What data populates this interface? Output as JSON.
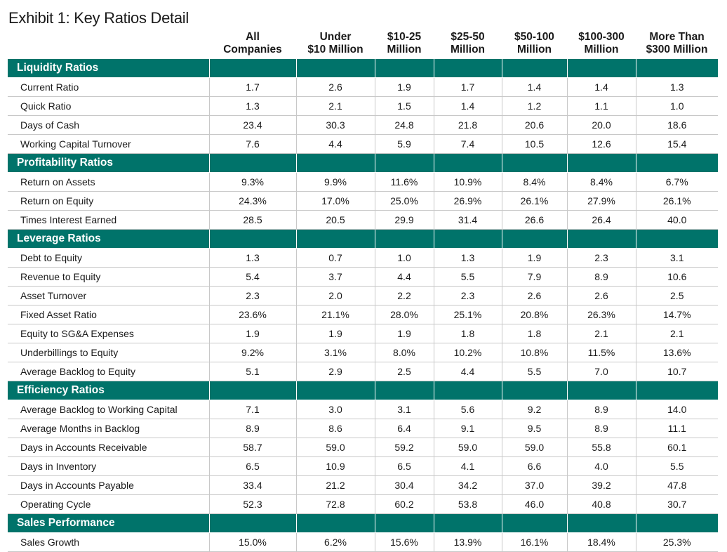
{
  "title": "Exhibit 1: Key Ratios Detail",
  "columns": [
    [
      "All",
      "Companies"
    ],
    [
      "Under",
      "$10 Million"
    ],
    [
      "$10-25",
      "Million"
    ],
    [
      "$25-50",
      "Million"
    ],
    [
      "$50-100",
      "Million"
    ],
    [
      "$100-300",
      "Million"
    ],
    [
      "More Than",
      "$300 Million"
    ]
  ],
  "colors": {
    "section_header_bg": "#00736a",
    "section_header_text": "#ffffff",
    "grid": "#c8c8c8"
  },
  "sections": [
    {
      "name": "Liquidity Ratios",
      "rows": [
        {
          "label": "Current Ratio",
          "values": [
            "1.7",
            "2.6",
            "1.9",
            "1.7",
            "1.4",
            "1.4",
            "1.3"
          ]
        },
        {
          "label": "Quick Ratio",
          "values": [
            "1.3",
            "2.1",
            "1.5",
            "1.4",
            "1.2",
            "1.1",
            "1.0"
          ]
        },
        {
          "label": "Days of Cash",
          "values": [
            "23.4",
            "30.3",
            "24.8",
            "21.8",
            "20.6",
            "20.0",
            "18.6"
          ]
        },
        {
          "label": "Working Capital Turnover",
          "values": [
            "7.6",
            "4.4",
            "5.9",
            "7.4",
            "10.5",
            "12.6",
            "15.4"
          ]
        }
      ]
    },
    {
      "name": "Profitability Ratios",
      "rows": [
        {
          "label": "Return on Assets",
          "values": [
            "9.3%",
            "9.9%",
            "11.6%",
            "10.9%",
            "8.4%",
            "8.4%",
            "6.7%"
          ]
        },
        {
          "label": "Return on Equity",
          "values": [
            "24.3%",
            "17.0%",
            "25.0%",
            "26.9%",
            "26.1%",
            "27.9%",
            "26.1%"
          ]
        },
        {
          "label": "Times Interest Earned",
          "values": [
            "28.5",
            "20.5",
            "29.9",
            "31.4",
            "26.6",
            "26.4",
            "40.0"
          ]
        }
      ]
    },
    {
      "name": "Leverage Ratios",
      "rows": [
        {
          "label": "Debt to Equity",
          "values": [
            "1.3",
            "0.7",
            "1.0",
            "1.3",
            "1.9",
            "2.3",
            "3.1"
          ]
        },
        {
          "label": "Revenue to Equity",
          "values": [
            "5.4",
            "3.7",
            "4.4",
            "5.5",
            "7.9",
            "8.9",
            "10.6"
          ]
        },
        {
          "label": "Asset Turnover",
          "values": [
            "2.3",
            "2.0",
            "2.2",
            "2.3",
            "2.6",
            "2.6",
            "2.5"
          ]
        },
        {
          "label": "Fixed Asset Ratio",
          "values": [
            "23.6%",
            "21.1%",
            "28.0%",
            "25.1%",
            "20.8%",
            "26.3%",
            "14.7%"
          ]
        },
        {
          "label": "Equity to SG&A Expenses",
          "values": [
            "1.9",
            "1.9",
            "1.9",
            "1.8",
            "1.8",
            "2.1",
            "2.1"
          ]
        },
        {
          "label": "Underbillings to Equity",
          "values": [
            "9.2%",
            "3.1%",
            "8.0%",
            "10.2%",
            "10.8%",
            "11.5%",
            "13.6%"
          ]
        },
        {
          "label": "Average Backlog to Equity",
          "values": [
            "5.1",
            "2.9",
            "2.5",
            "4.4",
            "5.5",
            "7.0",
            "10.7"
          ]
        }
      ]
    },
    {
      "name": "Efficiency Ratios",
      "rows": [
        {
          "label": "Average Backlog to Working Capital",
          "values": [
            "7.1",
            "3.0",
            "3.1",
            "5.6",
            "9.2",
            "8.9",
            "14.0"
          ]
        },
        {
          "label": "Average Months in Backlog",
          "values": [
            "8.9",
            "8.6",
            "6.4",
            "9.1",
            "9.5",
            "8.9",
            "11.1"
          ]
        },
        {
          "label": "Days in Accounts Receivable",
          "values": [
            "58.7",
            "59.0",
            "59.2",
            "59.0",
            "59.0",
            "55.8",
            "60.1"
          ]
        },
        {
          "label": "Days in Inventory",
          "values": [
            "6.5",
            "10.9",
            "6.5",
            "4.1",
            "6.6",
            "4.0",
            "5.5"
          ]
        },
        {
          "label": "Days in Accounts Payable",
          "values": [
            "33.4",
            "21.2",
            "30.4",
            "34.2",
            "37.0",
            "39.2",
            "47.8"
          ]
        },
        {
          "label": "Operating Cycle",
          "values": [
            "52.3",
            "72.8",
            "60.2",
            "53.8",
            "46.0",
            "40.8",
            "30.7"
          ]
        }
      ]
    },
    {
      "name": "Sales Performance",
      "rows": [
        {
          "label": "Sales Growth",
          "values": [
            "15.0%",
            "6.2%",
            "15.6%",
            "13.9%",
            "16.1%",
            "18.4%",
            "25.3%"
          ]
        }
      ]
    }
  ]
}
